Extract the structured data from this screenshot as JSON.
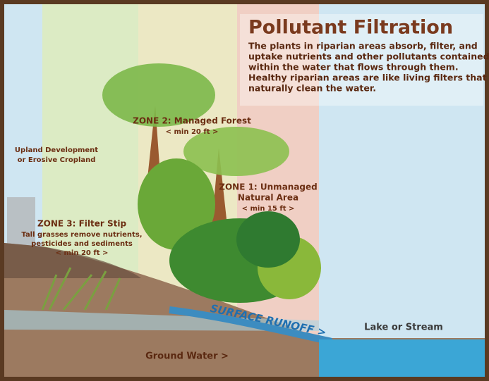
{
  "title": "Pollutant Filtration",
  "description": [
    "The plants in riparian areas absorb, filter, and",
    "uptake nutrients and other pollutants contained",
    "within the water that flows through them.",
    "Healthy riparian areas are like living filters that",
    "naturally clean the water."
  ],
  "zone2": {
    "title": "ZONE 2: Managed Forest",
    "width": "< min 20 ft >"
  },
  "upland": [
    "Upland Development",
    "or Erosive Cropland"
  ],
  "zone1": {
    "title": [
      "ZONE 1: Unmanaged",
      "Natural Area"
    ],
    "width": "< min 15 ft >"
  },
  "zone3": {
    "title": "ZONE 3: Filter Stip",
    "text": [
      "Tall grasses remove nutrients,",
      "pesticides and sediments"
    ],
    "width": "< min 20 ft >"
  },
  "runoff": "SURFACE RUNOFF >",
  "lake": "Lake or Stream",
  "groundwater": "Ground Water >"
}
